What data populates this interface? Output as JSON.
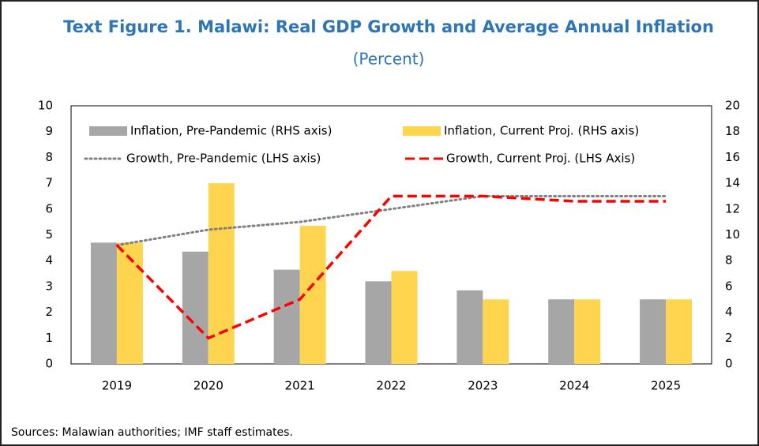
{
  "chart_data": {
    "type": "combo",
    "title": "Text Figure 1. Malawi: Real GDP Growth and Average Annual Inflation",
    "subtitle": "(Percent)",
    "note": "Sources: Malawian authorities; IMF staff estimates.",
    "categories": [
      "2019",
      "2020",
      "2021",
      "2022",
      "2023",
      "2024",
      "2025"
    ],
    "series": [
      {
        "name": "Inflation, Pre-Pandemic (RHS axis)",
        "type": "bar",
        "axis": "y2",
        "color": "#a6a6a6",
        "values": [
          9.4,
          8.7,
          7.3,
          6.4,
          5.7,
          5.0,
          5.0
        ]
      },
      {
        "name": "Inflation, Current Proj. (RHS axis)",
        "type": "bar",
        "axis": "y2",
        "color": "#ffd54f",
        "values": [
          9.4,
          14.0,
          10.7,
          7.2,
          5.0,
          5.0,
          5.0
        ]
      },
      {
        "name": "Growth, Pre-Pandemic (LHS axis)",
        "type": "line",
        "dash": "dotted",
        "color": "#808080",
        "values": [
          4.6,
          5.2,
          5.5,
          6.0,
          6.5,
          6.5,
          6.5
        ]
      },
      {
        "name": "Growth, Current Proj. (LHS Axis)",
        "type": "line",
        "dash": "dashed",
        "color": "#ff0000",
        "values": [
          4.6,
          1.0,
          2.5,
          6.5,
          6.5,
          6.3,
          6.3
        ]
      }
    ],
    "ylim": [
      0,
      10
    ],
    "yticks": [
      0,
      1,
      2,
      3,
      4,
      5,
      6,
      7,
      8,
      9,
      10
    ],
    "y2lim": [
      0,
      20
    ],
    "y2ticks": [
      0,
      2,
      4,
      6,
      8,
      10,
      12,
      14,
      16,
      18,
      20
    ],
    "grid": false
  }
}
